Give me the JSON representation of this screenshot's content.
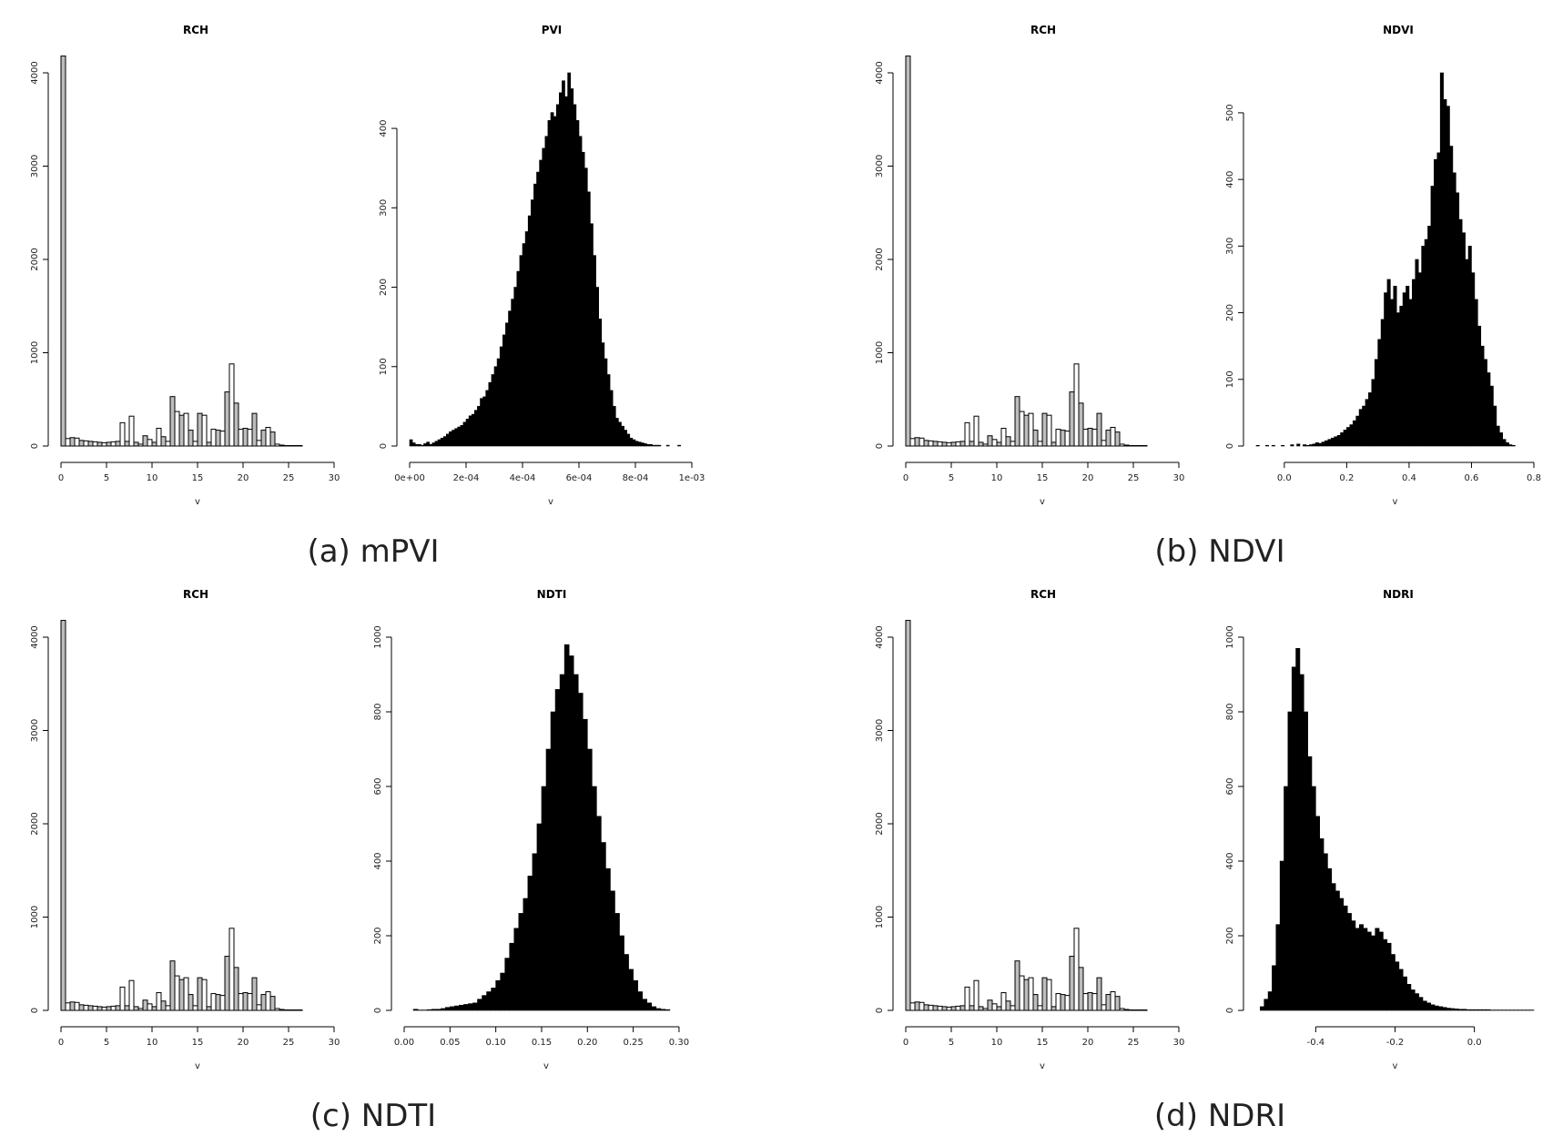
{
  "figure": {
    "captions": [
      "(a) mPVI",
      "(b) NDVI",
      "(c) NDTI",
      "(d) NDRI"
    ]
  },
  "chart_data": [
    {
      "type": "bar",
      "title": "RCH",
      "xlabel": "v",
      "ylabel": "",
      "xlim": [
        0,
        30
      ],
      "ylim": [
        0,
        4000
      ],
      "xticks": [
        "0",
        "5",
        "10",
        "15",
        "20",
        "25",
        "30"
      ],
      "yticks": [
        "0",
        "1000",
        "2000",
        "3000",
        "4000"
      ],
      "bin_width": 0.5,
      "x": [
        0,
        0.5,
        1,
        1.5,
        2,
        2.5,
        3,
        3.5,
        4,
        4.5,
        5,
        5.5,
        6,
        6.5,
        7,
        7.5,
        8,
        8.5,
        9,
        9.5,
        10,
        10.5,
        11,
        11.5,
        12,
        12.5,
        13,
        13.5,
        14,
        14.5,
        15,
        15.5,
        16,
        16.5,
        17,
        17.5,
        18,
        18.5,
        19,
        19.5,
        20,
        20.5,
        21,
        21.5,
        22,
        22.5,
        23,
        23.5,
        24,
        24.5,
        25,
        25.5,
        26,
        26.5,
        27
      ],
      "values": [
        4180,
        80,
        90,
        85,
        60,
        55,
        50,
        45,
        40,
        35,
        40,
        45,
        50,
        250,
        50,
        320,
        40,
        20,
        110,
        70,
        40,
        190,
        100,
        50,
        530,
        370,
        330,
        350,
        170,
        50,
        350,
        330,
        40,
        180,
        170,
        160,
        580,
        880,
        460,
        180,
        190,
        180,
        350,
        60,
        170,
        200,
        150,
        20,
        10,
        5,
        5,
        5,
        5,
        0,
        0
      ],
      "fill_pattern": "alternating-gray-white"
    },
    {
      "type": "bar",
      "title": "PVI",
      "xlabel": "v",
      "ylabel": "",
      "xlim": [
        0,
        0.001
      ],
      "ylim": [
        0,
        470
      ],
      "xticks": [
        "0e+00",
        "2e-04",
        "4e-04",
        "6e-04",
        "8e-04",
        "1e-03"
      ],
      "yticks": [
        "0",
        "100",
        "200",
        "300",
        "400"
      ],
      "x0": 0,
      "bin_width": 1e-05,
      "values": [
        8,
        4,
        2,
        2,
        1,
        3,
        5,
        2,
        4,
        6,
        8,
        10,
        12,
        15,
        18,
        20,
        22,
        24,
        26,
        30,
        34,
        38,
        40,
        45,
        50,
        60,
        62,
        70,
        80,
        90,
        100,
        110,
        125,
        140,
        155,
        170,
        185,
        200,
        220,
        240,
        255,
        270,
        290,
        310,
        330,
        345,
        360,
        375,
        390,
        410,
        420,
        415,
        430,
        445,
        460,
        440,
        470,
        450,
        430,
        410,
        390,
        370,
        350,
        320,
        280,
        240,
        200,
        160,
        130,
        110,
        90,
        70,
        50,
        35,
        30,
        25,
        20,
        15,
        10,
        8,
        6,
        5,
        4,
        3,
        2,
        2,
        1,
        1,
        1,
        0,
        0,
        1,
        0,
        0,
        0,
        1
      ]
    },
    {
      "type": "bar",
      "title": "RCH",
      "xlabel": "v",
      "ylabel": "",
      "xlim": [
        0,
        30
      ],
      "ylim": [
        0,
        4000
      ],
      "xticks": [
        "0",
        "5",
        "10",
        "15",
        "20",
        "25",
        "30"
      ],
      "yticks": [
        "0",
        "1000",
        "2000",
        "3000",
        "4000"
      ],
      "bin_width": 0.5,
      "x": [
        0,
        0.5,
        1,
        1.5,
        2,
        2.5,
        3,
        3.5,
        4,
        4.5,
        5,
        5.5,
        6,
        6.5,
        7,
        7.5,
        8,
        8.5,
        9,
        9.5,
        10,
        10.5,
        11,
        11.5,
        12,
        12.5,
        13,
        13.5,
        14,
        14.5,
        15,
        15.5,
        16,
        16.5,
        17,
        17.5,
        18,
        18.5,
        19,
        19.5,
        20,
        20.5,
        21,
        21.5,
        22,
        22.5,
        23,
        23.5,
        24,
        24.5,
        25,
        25.5,
        26,
        26.5,
        27
      ],
      "values": [
        4180,
        80,
        90,
        85,
        60,
        55,
        50,
        45,
        40,
        35,
        40,
        45,
        50,
        250,
        50,
        320,
        40,
        20,
        110,
        70,
        40,
        190,
        100,
        50,
        530,
        370,
        330,
        350,
        170,
        50,
        350,
        330,
        40,
        180,
        170,
        160,
        580,
        880,
        460,
        180,
        190,
        180,
        350,
        60,
        170,
        200,
        150,
        20,
        10,
        5,
        5,
        5,
        5,
        0,
        0
      ],
      "fill_pattern": "alternating-gray-white"
    },
    {
      "type": "bar",
      "title": "NDVI",
      "xlabel": "v",
      "ylabel": "",
      "xlim": [
        -0.09,
        0.8
      ],
      "ylim": [
        0,
        560
      ],
      "xticks": [
        "0.0",
        "0.2",
        "0.4",
        "0.6",
        "0.8"
      ],
      "yticks": [
        "0",
        "100",
        "200",
        "300",
        "400",
        "500"
      ],
      "x0": -0.09,
      "bin_width": 0.01,
      "values": [
        1,
        0,
        0,
        1,
        0,
        1,
        0,
        0,
        1,
        0,
        0,
        2,
        0,
        3,
        0,
        2,
        1,
        2,
        3,
        5,
        4,
        6,
        8,
        10,
        12,
        14,
        16,
        20,
        24,
        28,
        32,
        38,
        45,
        55,
        60,
        70,
        80,
        100,
        130,
        160,
        190,
        230,
        250,
        220,
        240,
        200,
        210,
        230,
        240,
        220,
        250,
        280,
        260,
        300,
        310,
        330,
        390,
        430,
        440,
        560,
        520,
        510,
        450,
        410,
        380,
        340,
        320,
        280,
        300,
        260,
        220,
        180,
        150,
        130,
        110,
        90,
        60,
        30,
        20,
        10,
        5,
        2,
        1
      ]
    },
    {
      "type": "bar",
      "title": "RCH",
      "xlabel": "v",
      "ylabel": "",
      "xlim": [
        0,
        30
      ],
      "ylim": [
        0,
        4000
      ],
      "xticks": [
        "0",
        "5",
        "10",
        "15",
        "20",
        "25",
        "30"
      ],
      "yticks": [
        "0",
        "1000",
        "2000",
        "3000",
        "4000"
      ],
      "bin_width": 0.5,
      "x": [
        0,
        0.5,
        1,
        1.5,
        2,
        2.5,
        3,
        3.5,
        4,
        4.5,
        5,
        5.5,
        6,
        6.5,
        7,
        7.5,
        8,
        8.5,
        9,
        9.5,
        10,
        10.5,
        11,
        11.5,
        12,
        12.5,
        13,
        13.5,
        14,
        14.5,
        15,
        15.5,
        16,
        16.5,
        17,
        17.5,
        18,
        18.5,
        19,
        19.5,
        20,
        20.5,
        21,
        21.5,
        22,
        22.5,
        23,
        23.5,
        24,
        24.5,
        25,
        25.5,
        26,
        26.5,
        27
      ],
      "values": [
        4180,
        80,
        90,
        85,
        60,
        55,
        50,
        45,
        40,
        35,
        40,
        45,
        50,
        250,
        50,
        320,
        40,
        20,
        110,
        70,
        40,
        190,
        100,
        50,
        530,
        370,
        330,
        350,
        170,
        50,
        350,
        330,
        40,
        180,
        170,
        160,
        580,
        880,
        460,
        180,
        190,
        180,
        350,
        60,
        170,
        200,
        150,
        20,
        10,
        5,
        5,
        5,
        5,
        0,
        0
      ],
      "fill_pattern": "alternating-gray-white"
    },
    {
      "type": "bar",
      "title": "NDTI",
      "xlabel": "v",
      "ylabel": "",
      "xlim": [
        0,
        0.31
      ],
      "ylim": [
        0,
        1000
      ],
      "xticks": [
        "0.00",
        "0.05",
        "0.10",
        "0.15",
        "0.20",
        "0.25",
        "0.30"
      ],
      "yticks": [
        "0",
        "200",
        "400",
        "600",
        "800",
        "1000"
      ],
      "x0": 0.01,
      "bin_width": 0.005,
      "values": [
        3,
        1,
        1,
        2,
        3,
        3,
        5,
        8,
        10,
        12,
        14,
        16,
        18,
        20,
        30,
        40,
        50,
        60,
        80,
        100,
        140,
        180,
        220,
        260,
        300,
        360,
        420,
        500,
        600,
        700,
        800,
        860,
        900,
        980,
        950,
        900,
        850,
        780,
        700,
        600,
        520,
        450,
        380,
        320,
        260,
        200,
        150,
        110,
        80,
        50,
        30,
        20,
        10,
        5,
        3,
        2
      ]
    },
    {
      "type": "bar",
      "title": "RCH",
      "xlabel": "v",
      "ylabel": "",
      "xlim": [
        0,
        30
      ],
      "ylim": [
        0,
        4000
      ],
      "xticks": [
        "0",
        "5",
        "10",
        "15",
        "20",
        "25",
        "30"
      ],
      "yticks": [
        "0",
        "1000",
        "2000",
        "3000",
        "4000"
      ],
      "bin_width": 0.5,
      "x": [
        0,
        0.5,
        1,
        1.5,
        2,
        2.5,
        3,
        3.5,
        4,
        4.5,
        5,
        5.5,
        6,
        6.5,
        7,
        7.5,
        8,
        8.5,
        9,
        9.5,
        10,
        10.5,
        11,
        11.5,
        12,
        12.5,
        13,
        13.5,
        14,
        14.5,
        15,
        15.5,
        16,
        16.5,
        17,
        17.5,
        18,
        18.5,
        19,
        19.5,
        20,
        20.5,
        21,
        21.5,
        22,
        22.5,
        23,
        23.5,
        24,
        24.5,
        25,
        25.5,
        26,
        26.5,
        27
      ],
      "values": [
        4180,
        80,
        90,
        85,
        60,
        55,
        50,
        45,
        40,
        35,
        40,
        45,
        50,
        250,
        50,
        320,
        40,
        20,
        110,
        70,
        40,
        190,
        100,
        50,
        530,
        370,
        330,
        350,
        170,
        50,
        350,
        330,
        40,
        180,
        170,
        160,
        580,
        880,
        460,
        180,
        190,
        180,
        350,
        60,
        170,
        200,
        150,
        20,
        10,
        5,
        5,
        5,
        5,
        0,
        0
      ],
      "fill_pattern": "alternating-gray-white"
    },
    {
      "type": "bar",
      "title": "NDRI",
      "xlabel": "v",
      "ylabel": "",
      "xlim": [
        -0.55,
        0.15
      ],
      "ylim": [
        0,
        1000
      ],
      "xticks": [
        "-0.4",
        "-0.2",
        "0.0"
      ],
      "yticks": [
        "0",
        "200",
        "400",
        "600",
        "800",
        "1000"
      ],
      "x0": -0.54,
      "bin_width": 0.01,
      "values": [
        10,
        30,
        50,
        120,
        230,
        400,
        600,
        800,
        920,
        970,
        900,
        800,
        680,
        600,
        520,
        460,
        420,
        380,
        340,
        320,
        300,
        280,
        260,
        240,
        220,
        230,
        220,
        210,
        200,
        220,
        210,
        190,
        180,
        150,
        130,
        110,
        90,
        70,
        55,
        45,
        35,
        25,
        20,
        15,
        12,
        10,
        8,
        6,
        5,
        4,
        3,
        3,
        2,
        2,
        2,
        2,
        2,
        2,
        1,
        1,
        1,
        1,
        1,
        1,
        1,
        1,
        1,
        1,
        1
      ]
    }
  ]
}
